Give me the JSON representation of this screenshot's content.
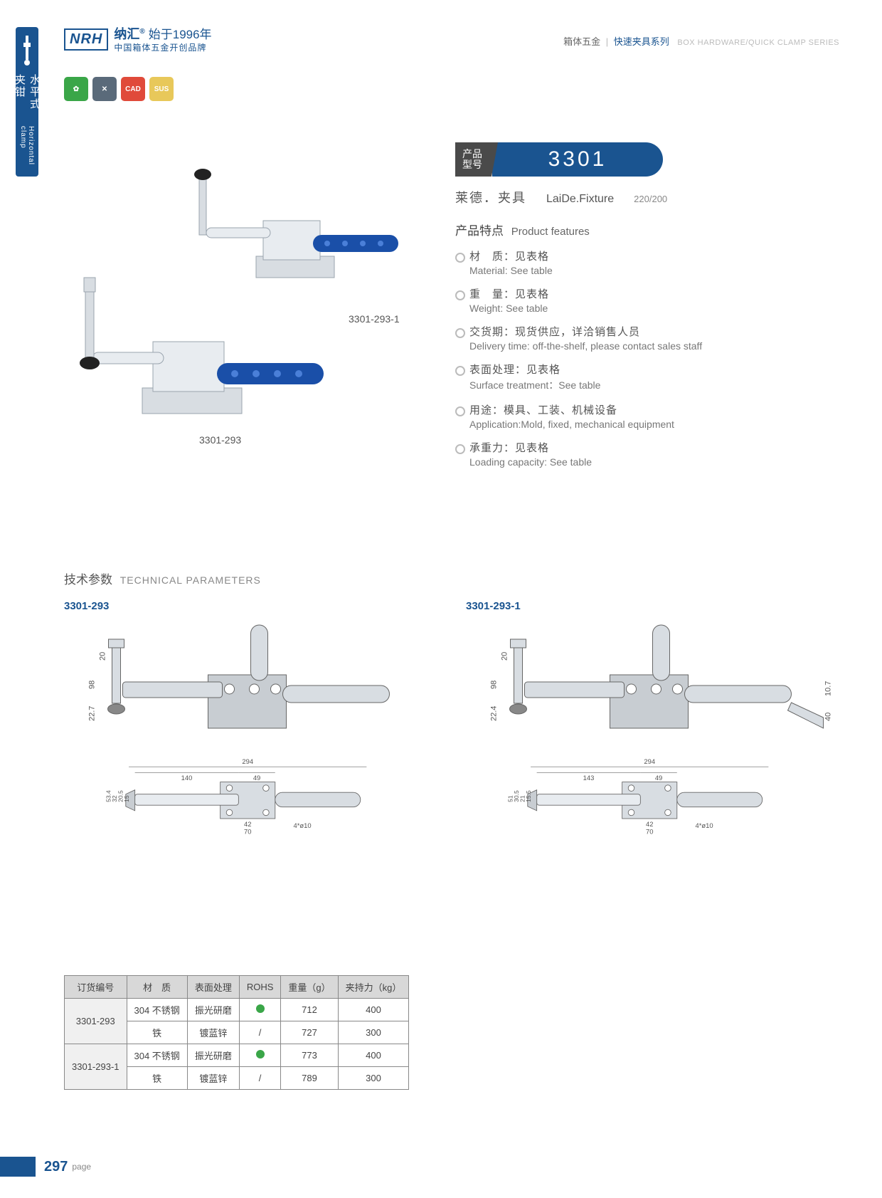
{
  "colors": {
    "brand": "#1a5490",
    "badge_green": "#3aa648",
    "badge_grey": "#5a6a7a",
    "badge_red": "#e04a3a",
    "badge_yellow": "#e8c85a",
    "text_main": "#444444",
    "text_sub": "#777777",
    "table_header_bg": "#d8d8d8",
    "rohs_green": "#3aa648"
  },
  "side_tab": {
    "cn": "水平式夹钳",
    "en": "Horizontal clamp"
  },
  "header": {
    "logo_mark": "NRH",
    "logo_cn": "纳汇",
    "logo_since": "始于1996年",
    "logo_tagline": "中国箱体五金开创品牌",
    "right_cn1": "箱体五金",
    "right_cn2": "快速夹具系列",
    "right_en": "BOX HARDWARE/QUICK CLAMP SERIES"
  },
  "badges": [
    {
      "label": "✿",
      "css": "green"
    },
    {
      "label": "✕",
      "css": "blue"
    },
    {
      "label": "CAD",
      "css": "red"
    },
    {
      "label": "SUS",
      "css": "yellow"
    }
  ],
  "photo_labels": {
    "a": "3301-293-1",
    "b": "3301-293"
  },
  "model": {
    "tag_l1": "产品",
    "tag_l2": "型号",
    "number": "3301",
    "sub_cn": "莱德．夹具",
    "sub_en": "LaiDe.Fixture",
    "sub_code": "220/200"
  },
  "features": {
    "title_cn": "产品特点",
    "title_en": "Product features",
    "items": [
      {
        "cn": "材　质：见表格",
        "en": "Material: See table"
      },
      {
        "cn": "重　量：见表格",
        "en": "Weight: See table"
      },
      {
        "cn": "交货期：现货供应，详洽销售人员",
        "en": "Delivery time: off-the-shelf, please contact sales staff"
      },
      {
        "cn": "表面处理：见表格",
        "en": "Surface treatment：See table"
      },
      {
        "cn": "用途：模具、工装、机械设备",
        "en": "Application:Mold, fixed, mechanical equipment"
      },
      {
        "cn": "承重力：见表格",
        "en": "Loading capacity: See table"
      }
    ]
  },
  "tech": {
    "title_cn": "技术参数",
    "title_en": "TECHNICAL PARAMETERS",
    "drawings": [
      {
        "label": "3301-293",
        "side_dims": {
          "h_total": "98",
          "h_top": "20",
          "h_bolt": "22.7"
        },
        "top_dims": {
          "total": "294",
          "a": "140",
          "b": "49",
          "base_w": "70",
          "base_inner": "42",
          "holes": "4*ø10",
          "h1": "53.4",
          "h2": "32",
          "h3": "20.5",
          "h4": "15"
        }
      },
      {
        "label": "3301-293-1",
        "side_dims": {
          "h_total": "98",
          "h_top": "20",
          "h_bolt": "22.4",
          "handle_h": "40",
          "handle_t": "10.7"
        },
        "top_dims": {
          "total": "294",
          "a": "143",
          "b": "49",
          "base_w": "70",
          "base_inner": "42",
          "holes": "4*ø10",
          "h1": "51",
          "h2": "30.5",
          "h3": "21",
          "h4": "15.5"
        }
      }
    ]
  },
  "spec_table": {
    "columns": [
      "订货编号",
      "材　质",
      "表面处理",
      "ROHS",
      "重量（g）",
      "夹持力（kg）"
    ],
    "groups": [
      {
        "model": "3301-293",
        "rows": [
          {
            "material": "304 不锈钢",
            "surface": "振光研磨",
            "rohs": "dot",
            "weight": "712",
            "load": "400"
          },
          {
            "material": "铁",
            "surface": "镀蓝锌",
            "rohs": "/",
            "weight": "727",
            "load": "300"
          }
        ]
      },
      {
        "model": "3301-293-1",
        "rows": [
          {
            "material": "304 不锈钢",
            "surface": "振光研磨",
            "rohs": "dot",
            "weight": "773",
            "load": "400"
          },
          {
            "material": "铁",
            "surface": "镀蓝锌",
            "rohs": "/",
            "weight": "789",
            "load": "300"
          }
        ]
      }
    ]
  },
  "footer": {
    "page_number": "297",
    "page_label": "page"
  }
}
